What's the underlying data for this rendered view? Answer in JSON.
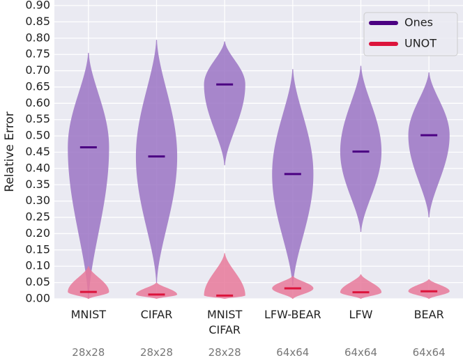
{
  "chart_data": {
    "type": "violin",
    "y_label": "Relative Error",
    "categories": [
      "MNIST",
      "CIFAR",
      "MNIST\nCIFAR",
      "LFW-BEAR",
      "LFW",
      "BEAR"
    ],
    "resolutions": [
      "28x28",
      "28x28",
      "28x28",
      "64x64",
      "64x64",
      "64x64"
    ],
    "series": [
      {
        "name": "Ones",
        "color": "#4b0082",
        "fill": "#9b74c4",
        "median": [
          0.465,
          0.437,
          0.658,
          0.383,
          0.452,
          0.502
        ],
        "min": [
          0.0,
          0.05,
          0.41,
          0.04,
          0.205,
          0.25
        ],
        "max": [
          0.755,
          0.795,
          0.79,
          0.705,
          0.715,
          0.695
        ]
      },
      {
        "name": "UNOT",
        "color": "#dc143c",
        "fill": "#e8799a",
        "median": [
          0.021,
          0.013,
          0.01,
          0.032,
          0.02,
          0.023
        ],
        "min": [
          0.0,
          0.0,
          0.0,
          0.0,
          0.0,
          0.0
        ],
        "max": [
          0.1,
          0.05,
          0.14,
          0.07,
          0.075,
          0.06
        ]
      }
    ],
    "ylim": [
      0,
      0.9
    ],
    "yticks": [
      {
        "value": 0,
        "label": "0.00"
      },
      {
        "value": 0.05,
        "label": "0.05"
      },
      {
        "value": 0.1,
        "label": "0.10"
      },
      {
        "value": 0.15,
        "label": "0.15"
      },
      {
        "value": 0.2,
        "label": "0.20"
      },
      {
        "value": 0.25,
        "label": "0.25"
      },
      {
        "value": 0.3,
        "label": "0.30"
      },
      {
        "value": 0.35,
        "label": "0.35"
      },
      {
        "value": 0.4,
        "label": "0.40"
      },
      {
        "value": 0.45,
        "label": "0.45"
      },
      {
        "value": 0.5,
        "label": "0.50"
      },
      {
        "value": 0.55,
        "label": "0.55"
      },
      {
        "value": 0.6,
        "label": "0.60"
      },
      {
        "value": 0.65,
        "label": "0.65"
      },
      {
        "value": 0.7,
        "label": "0.70"
      },
      {
        "value": 0.75,
        "label": "0.75"
      },
      {
        "value": 0.8,
        "label": "0.80"
      },
      {
        "value": 0.85,
        "label": "0.85"
      },
      {
        "value": 0.9,
        "label": "0.90"
      }
    ],
    "grid": true,
    "legend": "upper right"
  }
}
